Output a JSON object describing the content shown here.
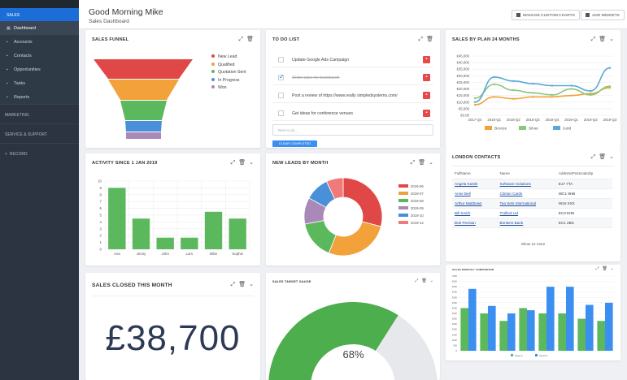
{
  "sidebar": {
    "section_label": "SALES",
    "items": [
      {
        "label": "Dashboard",
        "icon": "dashboard-icon"
      },
      {
        "label": "Accounts",
        "icon": "accounts-icon"
      },
      {
        "label": "Contacts",
        "icon": "contacts-icon"
      },
      {
        "label": "Opportunities",
        "icon": "opportunities-icon"
      },
      {
        "label": "Tasks",
        "icon": "tasks-icon"
      },
      {
        "label": "Reports",
        "icon": "reports-icon"
      }
    ],
    "groups": [
      "MARKETING",
      "SERVICE & SUPPORT",
      "RECORD"
    ]
  },
  "header": {
    "greeting": "Good Morning Mike",
    "subtitle": "Sales Dashboard",
    "manage_label": "MANAGE CUSTOM CHARTS",
    "add_label": "ADD WIDGETS"
  },
  "funnel": {
    "title": "SALES FUNNEL",
    "chart_data": {
      "type": "funnel",
      "stages": [
        {
          "name": "New Lead",
          "color": "#e04848"
        },
        {
          "name": "Qualified",
          "color": "#f2a13b"
        },
        {
          "name": "Quotation Sent",
          "color": "#5cb85c"
        },
        {
          "name": "In Progress",
          "color": "#4a90d9"
        },
        {
          "name": "Won",
          "color": "#a889b8"
        }
      ]
    }
  },
  "todo": {
    "title": "TO DO LIST",
    "items": [
      {
        "text": "Update Google Ads Campaign",
        "done": false
      },
      {
        "text": "Order cake for teamlunch",
        "done": true
      },
      {
        "text": "Post a review of https://www.really simpledsystems.com/",
        "done": false
      },
      {
        "text": "Get ideas for conference venues",
        "done": false
      }
    ],
    "input_placeholder": "New to do...",
    "clear_label": "CLEAR COMPLETED"
  },
  "plan": {
    "title": "SALES BY PLAN 24 MONTHS",
    "chart_data": {
      "type": "line",
      "x": [
        "2017-Q4",
        "2018-Q1",
        "2018-Q2",
        "2018-Q3",
        "2018-Q4",
        "2019-Q1",
        "2019-Q2",
        "2019-Q3"
      ],
      "yticks": [
        "€0.00",
        "€5,000",
        "€10,000",
        "€15,000",
        "€20,000",
        "€25,000",
        "€30,000",
        "€35,000",
        "€40,000",
        "€45,000"
      ],
      "ylim": [
        0,
        45000
      ],
      "series": [
        {
          "name": "Bronze",
          "color": "#f2a13b",
          "values": [
            8000,
            14000,
            12500,
            14000,
            14000,
            15000,
            16500,
            21000
          ]
        },
        {
          "name": "Silver",
          "color": "#8cc77a",
          "values": [
            13000,
            23500,
            19000,
            17000,
            15500,
            20000,
            15500,
            22000
          ]
        },
        {
          "name": "Gold",
          "color": "#5aa9d6",
          "values": [
            10000,
            29000,
            26000,
            24000,
            22500,
            22500,
            18500,
            36000
          ]
        }
      ]
    }
  },
  "activity": {
    "title": "ACTIVITY SINCE 1 JAN 2019",
    "chart_data": {
      "type": "bar",
      "categories": [
        "Ana",
        "Jenny",
        "John",
        "Lars",
        "Mike",
        "Sophie"
      ],
      "values": [
        9,
        4.5,
        1.7,
        1.7,
        5.5,
        4.5
      ],
      "yticks": [
        "0",
        "1",
        "2",
        "3",
        "4",
        "5",
        "6",
        "7",
        "8",
        "9",
        "10"
      ],
      "ylim": [
        0,
        10
      ],
      "color": "#5cb85c"
    }
  },
  "leads": {
    "title": "NEW LEADS BY MONTH",
    "chart_data": {
      "type": "pie",
      "labels": [
        "2019-06",
        "2019-07",
        "2019-08",
        "2019-09",
        "2019-10",
        "2019-12"
      ],
      "values": [
        29,
        27,
        16,
        11,
        10,
        7
      ],
      "colors": [
        "#e04848",
        "#f2a13b",
        "#5cb85c",
        "#a889b8",
        "#4a90d9",
        "#f07a7a"
      ]
    }
  },
  "contacts": {
    "title": "LONDON CONTACTS",
    "headers": [
      "FullName",
      "Name",
      "AddressPostcodeZip"
    ],
    "rows": [
      [
        "Angela Kastle",
        "Software Solutions",
        "E17 7TA"
      ],
      [
        "Anne Bell",
        "Clinton Cards",
        "WC1 8HB"
      ],
      [
        "Arthur Matthews",
        "Tea Sets International",
        "W1K 5XX"
      ],
      [
        "Bill Smith",
        "Trollied Ltd",
        "EC3 8HN"
      ],
      [
        "Bob Pevsian",
        "Bonkers Bank",
        "EC1 2BS"
      ]
    ],
    "show_more": "Show 12 more"
  },
  "closed": {
    "title": "SALES CLOSED THIS MONTH",
    "amount": "£38,700"
  },
  "gauge": {
    "title": "SALES TARGET GAUGE",
    "value": "68%",
    "chart_data": {
      "type": "gauge",
      "value": 68,
      "max": 100
    }
  },
  "monthly": {
    "title": "SALES MONTHLY COMPARISON",
    "chart_data": {
      "type": "bar",
      "categories": [
        "1",
        "2",
        "3",
        "4",
        "5",
        "6",
        "7",
        "8"
      ],
      "yticks": [
        "0",
        "500",
        "1000",
        "1500",
        "2000",
        "2500",
        "3000",
        "3500",
        "4000",
        "4500",
        "5000",
        "5500",
        "6000",
        "6500",
        "7000"
      ],
      "ylim": [
        0,
        7000
      ],
      "series": [
        {
          "name": "Series A",
          "color": "#5cb85c",
          "values": [
            4000,
            3500,
            2800,
            4000,
            3500,
            3500,
            3000,
            2800
          ]
        },
        {
          "name": "Series B",
          "color": "#3b8ff0",
          "values": [
            5800,
            4200,
            3500,
            3800,
            6000,
            6000,
            4300,
            4500
          ]
        }
      ]
    }
  }
}
